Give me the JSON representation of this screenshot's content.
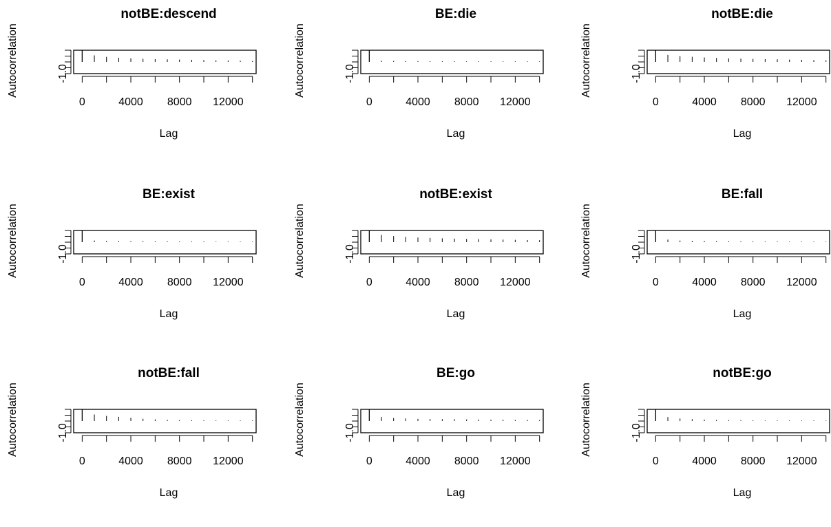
{
  "chart_data": [
    {
      "type": "bar",
      "title": "notBE:descend",
      "xlabel": "Lag",
      "ylabel": "Autocorrelation",
      "xlim": [
        -700,
        14300
      ],
      "ylim": [
        -1.0,
        1.0
      ],
      "xticks": [
        0,
        4000,
        8000,
        12000
      ],
      "yticks": [
        "-1.0"
      ],
      "x": [
        0,
        1000,
        2000,
        3000,
        4000,
        5000,
        6000,
        7000,
        8000,
        9000,
        10000,
        11000,
        12000,
        13000,
        14000
      ],
      "values": [
        1.0,
        0.56,
        0.43,
        0.36,
        0.31,
        0.27,
        0.24,
        0.22,
        0.2,
        0.18,
        0.16,
        0.14,
        0.12,
        0.1,
        0.08
      ]
    },
    {
      "type": "bar",
      "title": "BE:die",
      "xlabel": "Lag",
      "ylabel": "Autocorrelation",
      "xlim": [
        -700,
        14300
      ],
      "ylim": [
        -1.0,
        1.0
      ],
      "xticks": [
        0,
        4000,
        8000,
        12000
      ],
      "yticks": [
        "-1.0"
      ],
      "x": [
        0,
        1000,
        2000,
        3000,
        4000,
        5000,
        6000,
        7000,
        8000,
        9000,
        10000,
        11000,
        12000,
        13000,
        14000
      ],
      "values": [
        1.0,
        0.1,
        0.08,
        0.07,
        0.07,
        0.06,
        0.06,
        0.05,
        0.05,
        0.05,
        0.05,
        0.04,
        0.04,
        0.04,
        0.04
      ]
    },
    {
      "type": "bar",
      "title": "notBE:die",
      "xlabel": "Lag",
      "ylabel": "Autocorrelation",
      "xlim": [
        -700,
        14300
      ],
      "ylim": [
        -1.0,
        1.0
      ],
      "xticks": [
        0,
        4000,
        8000,
        12000
      ],
      "yticks": [
        "-1.0"
      ],
      "x": [
        0,
        1000,
        2000,
        3000,
        4000,
        5000,
        6000,
        7000,
        8000,
        9000,
        10000,
        11000,
        12000,
        13000,
        14000
      ],
      "values": [
        1.0,
        0.6,
        0.5,
        0.44,
        0.38,
        0.34,
        0.3,
        0.28,
        0.26,
        0.24,
        0.22,
        0.2,
        0.18,
        0.16,
        0.14
      ]
    },
    {
      "type": "bar",
      "title": "BE:exist",
      "xlabel": "Lag",
      "ylabel": "Autocorrelation",
      "xlim": [
        -700,
        14300
      ],
      "ylim": [
        -1.0,
        1.0
      ],
      "xticks": [
        0,
        4000,
        8000,
        12000
      ],
      "yticks": [
        "-1.0"
      ],
      "x": [
        0,
        1000,
        2000,
        3000,
        4000,
        5000,
        6000,
        7000,
        8000,
        9000,
        10000,
        11000,
        12000,
        13000,
        14000
      ],
      "values": [
        1.0,
        0.14,
        0.1,
        0.09,
        0.08,
        0.08,
        0.07,
        0.07,
        0.06,
        0.06,
        0.06,
        0.05,
        0.05,
        0.05,
        0.05
      ]
    },
    {
      "type": "bar",
      "title": "notBE:exist",
      "xlabel": "Lag",
      "ylabel": "Autocorrelation",
      "xlim": [
        -700,
        14300
      ],
      "ylim": [
        -1.0,
        1.0
      ],
      "xticks": [
        0,
        4000,
        8000,
        12000
      ],
      "yticks": [
        "-1.0"
      ],
      "x": [
        0,
        1000,
        2000,
        3000,
        4000,
        5000,
        6000,
        7000,
        8000,
        9000,
        10000,
        11000,
        12000,
        13000,
        14000
      ],
      "values": [
        1.0,
        0.62,
        0.52,
        0.45,
        0.4,
        0.36,
        0.33,
        0.3,
        0.28,
        0.26,
        0.24,
        0.22,
        0.2,
        0.18,
        0.17
      ]
    },
    {
      "type": "bar",
      "title": "BE:fall",
      "xlabel": "Lag",
      "ylabel": "Autocorrelation",
      "xlim": [
        -700,
        14300
      ],
      "ylim": [
        -1.0,
        1.0
      ],
      "xticks": [
        0,
        4000,
        8000,
        12000
      ],
      "yticks": [
        "-1.0"
      ],
      "x": [
        0,
        1000,
        2000,
        3000,
        4000,
        5000,
        6000,
        7000,
        8000,
        9000,
        10000,
        11000,
        12000,
        13000,
        14000
      ],
      "values": [
        1.0,
        0.22,
        0.14,
        0.11,
        0.1,
        0.09,
        0.08,
        0.07,
        0.07,
        0.06,
        0.06,
        0.05,
        0.05,
        0.05,
        0.04
      ]
    },
    {
      "type": "bar",
      "title": "notBE:fall",
      "xlabel": "Lag",
      "ylabel": "Autocorrelation",
      "xlim": [
        -700,
        14300
      ],
      "ylim": [
        -1.0,
        1.0
      ],
      "xticks": [
        0,
        4000,
        8000,
        12000
      ],
      "yticks": [
        "-1.0"
      ],
      "x": [
        0,
        1000,
        2000,
        3000,
        4000,
        5000,
        6000,
        7000,
        8000,
        9000,
        10000,
        11000,
        12000,
        13000,
        14000
      ],
      "values": [
        1.0,
        0.56,
        0.44,
        0.36,
        0.28,
        0.2,
        0.14,
        0.1,
        0.08,
        0.07,
        0.06,
        0.05,
        0.05,
        0.04,
        0.04
      ]
    },
    {
      "type": "bar",
      "title": "BE:go",
      "xlabel": "Lag",
      "ylabel": "Autocorrelation",
      "xlim": [
        -700,
        14300
      ],
      "ylim": [
        -1.0,
        1.0
      ],
      "xticks": [
        0,
        4000,
        8000,
        12000
      ],
      "yticks": [
        "-1.0"
      ],
      "x": [
        0,
        1000,
        2000,
        3000,
        4000,
        5000,
        6000,
        7000,
        8000,
        9000,
        10000,
        11000,
        12000,
        13000,
        14000
      ],
      "values": [
        1.0,
        0.34,
        0.26,
        0.22,
        0.19,
        0.17,
        0.16,
        0.15,
        0.14,
        0.13,
        0.12,
        0.11,
        0.1,
        0.1,
        0.09
      ]
    },
    {
      "type": "bar",
      "title": "notBE:go",
      "xlabel": "Lag",
      "ylabel": "Autocorrelation",
      "xlim": [
        -700,
        14300
      ],
      "ylim": [
        -1.0,
        1.0
      ],
      "xticks": [
        0,
        4000,
        8000,
        12000
      ],
      "yticks": [
        "-1.0"
      ],
      "x": [
        0,
        1000,
        2000,
        3000,
        4000,
        5000,
        6000,
        7000,
        8000,
        9000,
        10000,
        11000,
        12000,
        13000,
        14000
      ],
      "values": [
        1.0,
        0.34,
        0.22,
        0.16,
        0.12,
        0.1,
        0.08,
        0.07,
        0.06,
        0.05,
        0.05,
        0.04,
        0.04,
        0.04,
        0.03
      ]
    }
  ]
}
